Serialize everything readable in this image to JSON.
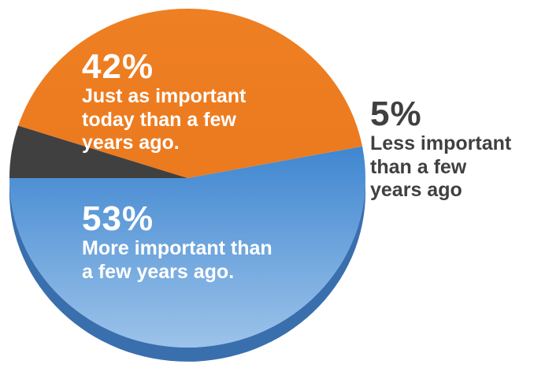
{
  "chart_data": {
    "type": "pie",
    "slices": [
      {
        "value": 53,
        "percent_label": "53%",
        "description": "More important than\na few years ago.",
        "color": "#4a8fd4",
        "label_color": "#ffffff"
      },
      {
        "value": 42,
        "percent_label": "42%",
        "description": "Just as important\ntoday than a few\nyears ago.",
        "color": "#ed7d23",
        "label_color": "#ffffff"
      },
      {
        "value": 5,
        "percent_label": "5%",
        "description": "Less important\nthan a few\nyears ago",
        "color": "#404040",
        "label_color": "#404040"
      }
    ]
  }
}
